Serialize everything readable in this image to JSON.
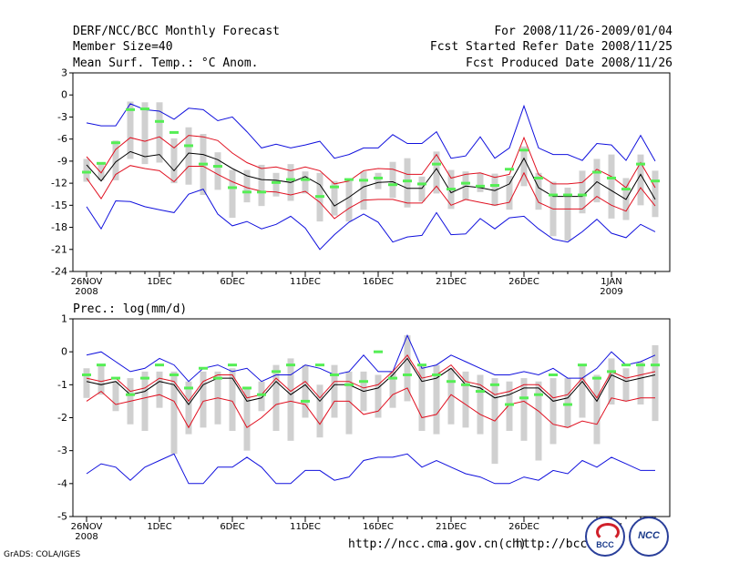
{
  "header": {
    "title": "DERF/NCC/BCC Monthly Forecast",
    "member": "Member Size=40",
    "variable": "Mean Surf. Temp.: °C Anom.",
    "range": "For 2008/11/26-2009/01/04",
    "started": "Fcst Started Refer Date 2008/11/25",
    "produced": "Fcst Produced Date 2008/11/26"
  },
  "footer": {
    "grads": "GrADS: COLA/IGES",
    "url1": "http://ncc.cma.gov.cn(ch)",
    "url2": "http://bcc.c",
    "logo1": "BCC",
    "logo2": "NCC"
  },
  "colors": {
    "box": "#d0d0d0",
    "median": "#55ee55",
    "envelope": "#1010dd",
    "spread": "#e01020",
    "mean": "#000000"
  },
  "chart_data": [
    {
      "type": "line",
      "title": "Mean Surf. Temp.: °C Anom.",
      "ylim": [
        -24,
        3
      ],
      "yticks": [
        3,
        0,
        -3,
        -6,
        -9,
        -12,
        -15,
        -18,
        -21,
        -24
      ],
      "xtick_labels": [
        {
          "day": 0,
          "label": "26NOV",
          "sub": "2008"
        },
        {
          "day": 5,
          "label": "1DEC"
        },
        {
          "day": 10,
          "label": "6DEC"
        },
        {
          "day": 15,
          "label": "11DEC"
        },
        {
          "day": 20,
          "label": "16DEC"
        },
        {
          "day": 25,
          "label": "21DEC"
        },
        {
          "day": 30,
          "label": "26DEC"
        },
        {
          "day": 36,
          "label": "1JAN",
          "sub": "2009"
        }
      ],
      "x": [
        0,
        1,
        2,
        3,
        4,
        5,
        6,
        7,
        8,
        9,
        10,
        11,
        12,
        13,
        14,
        15,
        16,
        17,
        18,
        19,
        20,
        21,
        22,
        23,
        24,
        25,
        26,
        27,
        28,
        29,
        30,
        31,
        32,
        33,
        34,
        35,
        36,
        37,
        38,
        39
      ],
      "series": [
        {
          "name": "max",
          "values": [
            -3.8,
            -4.2,
            -4.2,
            -1.2,
            -2,
            -2.2,
            -3.3,
            -1.8,
            -2,
            -3.5,
            -3,
            -5,
            -7.2,
            -6.7,
            -7.2,
            -6.8,
            -6.3,
            -8.6,
            -8.1,
            -7.2,
            -7.2,
            -5.4,
            -6.6,
            -6.6,
            -5,
            -8.6,
            -8.3,
            -5.7,
            -8.6,
            -7.2,
            -1.5,
            -7.2,
            -8.1,
            -8.1,
            -8.9,
            -6.6,
            -6.8,
            -8.9,
            -5.5,
            -9
          ]
        },
        {
          "name": "upper",
          "values": [
            -8.4,
            -10.6,
            -7.4,
            -5.8,
            -6.3,
            -5.7,
            -7.2,
            -5.5,
            -5.7,
            -6.2,
            -7.9,
            -9.2,
            -10,
            -9.8,
            -10.3,
            -9.8,
            -10.3,
            -12.1,
            -11.7,
            -10.3,
            -10,
            -10.1,
            -10.8,
            -10.8,
            -8.1,
            -11.3,
            -10.8,
            -10.6,
            -11.2,
            -10.8,
            -5.8,
            -10.8,
            -12.1,
            -12.1,
            -11.9,
            -10.1,
            -11.1,
            -12.6,
            -9.2,
            -12.6
          ]
        },
        {
          "name": "mean",
          "values": [
            -9.5,
            -11.7,
            -9.1,
            -7.7,
            -8.4,
            -8.1,
            -10.3,
            -7.9,
            -8.1,
            -8.8,
            -10,
            -11,
            -11.5,
            -11.6,
            -11.9,
            -11.1,
            -12.2,
            -15.1,
            -13.9,
            -12.5,
            -11.9,
            -11.8,
            -12.7,
            -12.7,
            -10,
            -13.3,
            -12.4,
            -12.6,
            -13,
            -12.1,
            -8.6,
            -12.6,
            -13.8,
            -13.8,
            -13.8,
            -11.8,
            -13,
            -14.2,
            -10.8,
            -14.2
          ]
        },
        {
          "name": "lower",
          "values": [
            -11.3,
            -14.1,
            -10.8,
            -9.6,
            -10,
            -10.3,
            -11.8,
            -9.7,
            -9.7,
            -10.8,
            -11.8,
            -12.6,
            -13.1,
            -13.2,
            -13.6,
            -13.1,
            -14.6,
            -16.8,
            -15.4,
            -14.3,
            -14.2,
            -14.2,
            -14.7,
            -14.7,
            -12.4,
            -15,
            -14.2,
            -14.6,
            -15,
            -14.6,
            -10.6,
            -14.6,
            -15.5,
            -15.5,
            -15.5,
            -13.8,
            -15,
            -15.8,
            -12.6,
            -15.1
          ]
        },
        {
          "name": "min",
          "values": [
            -15.2,
            -18.2,
            -14.4,
            -14.5,
            -15.2,
            -15.6,
            -16,
            -13.5,
            -12.8,
            -16.2,
            -17.8,
            -17.2,
            -18.2,
            -17.6,
            -16.5,
            -18.1,
            -21,
            -19,
            -17.3,
            -16.2,
            -17.3,
            -20,
            -19.3,
            -19.1,
            -16,
            -19,
            -18.9,
            -16.8,
            -18.2,
            -16.7,
            -16.5,
            -18.2,
            -19.6,
            -20,
            -18.6,
            -16.9,
            -18.8,
            -19.4,
            -17.6,
            -18.6
          ]
        },
        {
          "name": "box_top",
          "values": [
            -8.7,
            -9.2,
            -6.2,
            -0.9,
            -1,
            -1,
            -5.9,
            -4.4,
            -5.3,
            -7.8,
            -10.2,
            -10.2,
            -9.5,
            -10.6,
            -9.4,
            -10.4,
            -10.6,
            -11.7,
            -11.6,
            -10.4,
            -10.6,
            -9.1,
            -8.6,
            -11.1,
            -7.7,
            -10.2,
            -10.4,
            -10.6,
            -10.7,
            -11,
            -7,
            -10.6,
            -11.8,
            -12.6,
            -10.3,
            -8.7,
            -8.1,
            -11.3,
            -8.1,
            -10.3
          ]
        },
        {
          "name": "box_bottom",
          "values": [
            -11.8,
            -11.6,
            -11.6,
            -8.7,
            -9.4,
            -9.2,
            -12,
            -12.2,
            -13.6,
            -12.9,
            -16.7,
            -14.6,
            -15.1,
            -13.8,
            -14.4,
            -13.4,
            -17.2,
            -16.4,
            -17.2,
            -15.6,
            -12.8,
            -14,
            -15.3,
            -14.5,
            -13.4,
            -15.5,
            -14.3,
            -13.2,
            -15.1,
            -15.6,
            -12.4,
            -15.6,
            -19.2,
            -19.8,
            -16.1,
            -14.6,
            -16.8,
            -17,
            -15,
            -16.6
          ]
        },
        {
          "name": "median",
          "values": [
            -10.5,
            -9.3,
            -6.5,
            -2,
            -1.9,
            -3.6,
            -5.1,
            -6.9,
            -9.4,
            -9.7,
            -12.6,
            -13.2,
            -13.2,
            -11.9,
            -11.5,
            -11.5,
            -13.8,
            -12.5,
            -11.5,
            -11.6,
            -11.3,
            -12.2,
            -11.7,
            -12.1,
            -9.4,
            -12.8,
            -12,
            -12.4,
            -12.3,
            -10.1,
            -7.5,
            -11.3,
            -13.6,
            -13.6,
            -13.6,
            -10.5,
            -11.3,
            -12.8,
            -9.4,
            -11.7
          ]
        }
      ]
    },
    {
      "type": "line",
      "title": "Prec.: log(mm/d)",
      "ylim": [
        -5,
        1
      ],
      "yticks": [
        1,
        0,
        -1,
        -2,
        -3,
        -4,
        -5
      ],
      "xtick_labels": [
        {
          "day": 0,
          "label": "26NOV",
          "sub": "2008"
        },
        {
          "day": 5,
          "label": "1DEC"
        },
        {
          "day": 10,
          "label": "6DEC"
        },
        {
          "day": 15,
          "label": "11DEC"
        },
        {
          "day": 20,
          "label": "16DEC"
        },
        {
          "day": 25,
          "label": "21DEC"
        },
        {
          "day": 30,
          "label": "26DEC"
        },
        {
          "day": 36,
          "label": "1JAN",
          "sub": "2009"
        }
      ],
      "x": [
        0,
        1,
        2,
        3,
        4,
        5,
        6,
        7,
        8,
        9,
        10,
        11,
        12,
        13,
        14,
        15,
        16,
        17,
        18,
        19,
        20,
        21,
        22,
        23,
        24,
        25,
        26,
        27,
        28,
        29,
        30,
        31,
        32,
        33,
        34,
        35,
        36,
        37,
        38,
        39
      ],
      "series": [
        {
          "name": "max",
          "values": [
            -0.1,
            0,
            -0.3,
            -0.6,
            -0.5,
            -0.2,
            -0.4,
            -0.9,
            -0.5,
            -0.4,
            -0.6,
            -0.5,
            -0.9,
            -0.7,
            -0.7,
            -0.4,
            -0.5,
            -0.7,
            -0.6,
            -0.1,
            -0.6,
            -0.6,
            0.5,
            -0.5,
            -0.4,
            -0.1,
            -0.3,
            -0.5,
            -0.7,
            -0.7,
            -0.6,
            -0.7,
            -0.5,
            -0.8,
            -0.8,
            -0.5,
            0,
            -0.4,
            -0.3,
            -0.1
          ]
        },
        {
          "name": "upper",
          "values": [
            -0.8,
            -0.9,
            -0.8,
            -1.2,
            -1.1,
            -0.8,
            -0.9,
            -1.5,
            -0.9,
            -0.7,
            -0.7,
            -1.4,
            -1.3,
            -0.8,
            -1.2,
            -0.9,
            -1.4,
            -0.9,
            -0.9,
            -1.1,
            -1,
            -0.6,
            -0.1,
            -0.8,
            -0.7,
            -0.4,
            -0.9,
            -1,
            -1.3,
            -1.2,
            -1,
            -1,
            -1.4,
            -1.3,
            -0.8,
            -1.4,
            -0.6,
            -0.8,
            -0.7,
            -0.6
          ]
        },
        {
          "name": "mean",
          "values": [
            -0.9,
            -1,
            -0.9,
            -1.3,
            -1.2,
            -0.9,
            -1,
            -1.6,
            -1,
            -0.8,
            -0.8,
            -1.5,
            -1.4,
            -0.9,
            -1.3,
            -1,
            -1.5,
            -1,
            -1,
            -1.2,
            -1.1,
            -0.7,
            -0.2,
            -0.9,
            -0.8,
            -0.5,
            -1,
            -1.1,
            -1.4,
            -1.3,
            -1.1,
            -1.1,
            -1.5,
            -1.4,
            -0.9,
            -1.5,
            -0.7,
            -0.9,
            -0.8,
            -0.7
          ]
        },
        {
          "name": "lower",
          "values": [
            -1.5,
            -1.2,
            -1.6,
            -1.5,
            -1.4,
            -1.3,
            -1.5,
            -2.3,
            -1.5,
            -1.4,
            -1.5,
            -2.3,
            -2,
            -1.6,
            -1.5,
            -1.6,
            -2.2,
            -1.5,
            -1.5,
            -1.9,
            -1.8,
            -1.3,
            -1.1,
            -2,
            -1.9,
            -1.3,
            -1.6,
            -1.9,
            -2.1,
            -1.6,
            -1.5,
            -1.8,
            -2.2,
            -2.3,
            -2.1,
            -2.2,
            -1.4,
            -1.5,
            -1.4,
            -1.4
          ]
        },
        {
          "name": "min",
          "values": [
            -3.7,
            -3.4,
            -3.5,
            -3.9,
            -3.5,
            -3.3,
            -3.1,
            -4,
            -4,
            -3.5,
            -3.5,
            -3.2,
            -3.5,
            -4,
            -4,
            -3.6,
            -3.6,
            -3.9,
            -3.8,
            -3.3,
            -3.2,
            -3.2,
            -3.1,
            -3.5,
            -3.3,
            -3.5,
            -3.7,
            -3.8,
            -4,
            -4,
            -3.8,
            -3.9,
            -3.6,
            -3.7,
            -3.3,
            -3.5,
            -3.2,
            -3.4,
            -3.6,
            -3.6
          ]
        },
        {
          "name": "box_top",
          "values": [
            -0.5,
            -0.4,
            -0.9,
            -0.8,
            -0.6,
            -0.6,
            -0.6,
            -0.9,
            -0.6,
            -0.6,
            -0.5,
            -1.1,
            -0.9,
            -0.4,
            -0.2,
            -0.4,
            -1,
            -0.4,
            -0.6,
            -0.6,
            -0.7,
            -0.6,
            0.5,
            -0.4,
            -0.4,
            -0.5,
            -0.6,
            -0.7,
            -0.8,
            -0.9,
            -0.8,
            -0.9,
            -0.8,
            -0.8,
            -0.4,
            -0.7,
            -0.2,
            -0.5,
            -0.3,
            0.2
          ]
        },
        {
          "name": "box_bottom",
          "values": [
            -1.4,
            -1.3,
            -1.8,
            -2.2,
            -2.4,
            -1.7,
            -3.1,
            -2.5,
            -2.3,
            -2.2,
            -2.4,
            -3,
            -1.8,
            -2.4,
            -2.7,
            -2,
            -2.6,
            -2,
            -2.5,
            -1.8,
            -2,
            -1.7,
            -1.5,
            -2.4,
            -2.5,
            -2.2,
            -2.3,
            -2.5,
            -3.4,
            -2.4,
            -2.7,
            -3.3,
            -2.8,
            -2.3,
            -2,
            -2.8,
            -1.6,
            -1.5,
            -1.6,
            -2.1
          ]
        },
        {
          "name": "median",
          "values": [
            -0.7,
            -0.4,
            -0.8,
            -1.3,
            -0.8,
            -0.4,
            -0.7,
            -1.1,
            -0.5,
            -0.8,
            -0.4,
            -1.1,
            -1.3,
            -0.6,
            -0.4,
            -1.5,
            -0.4,
            -0.7,
            -1,
            -0.9,
            0,
            -0.8,
            -0.7,
            -0.4,
            -0.7,
            -0.9,
            -1,
            -1.2,
            -1,
            -1.6,
            -1.4,
            -1.3,
            -0.7,
            -1.6,
            -0.4,
            -0.8,
            -0.6,
            -0.4,
            -0.4,
            -0.4
          ]
        }
      ]
    }
  ]
}
